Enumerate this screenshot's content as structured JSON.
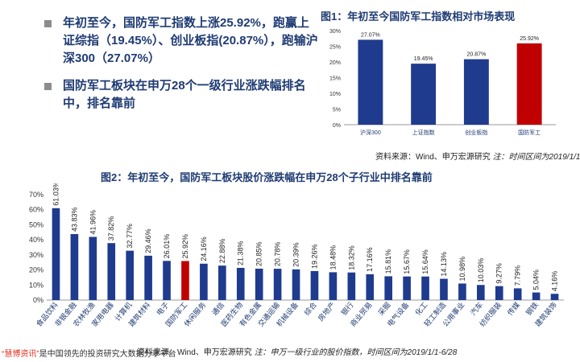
{
  "bullets": [
    "年初至今，国防军工指数上涨25.92%，跑赢上证综指（19.45%）、创业板指(20.87%），跑输沪深300（27.07%）",
    "国防军工板块在申万28个一级行业涨跌幅排名中，排名靠前"
  ],
  "colors": {
    "primary": "#1f3b8e",
    "highlight": "#c00000",
    "title": "#1f3b73"
  },
  "chart_data": [
    {
      "type": "bar",
      "title": "图1：年初至今国防军工指数相对市场表现",
      "categories": [
        "沪深300",
        "上证指数",
        "创业板指",
        "国防军工"
      ],
      "values": [
        27.07,
        19.45,
        20.87,
        25.92
      ],
      "value_labels": [
        "27.07%",
        "19.45%",
        "20.87%",
        "25.92%"
      ],
      "highlight_index": 3,
      "ylim": [
        0,
        30
      ],
      "yticks": [
        "0%",
        "5%",
        "10%",
        "15%",
        "20%",
        "25%",
        "30%"
      ],
      "source_text": "资料来源：Wind、申万宏源研究 ",
      "note": "注：时间区间为2019/1/1-6/28"
    },
    {
      "type": "bar",
      "title": "图2：年初至今，国防军工板块股价涨跌幅在申万28个子行业中排名靠前",
      "categories": [
        "食品饮料",
        "非银金融",
        "农林牧渔",
        "家用电器",
        "计算机",
        "建筑材料",
        "电子",
        "国防军工",
        "休闲服务",
        "通信",
        "医药生物",
        "有色金属",
        "交通运输",
        "机械设备",
        "综合",
        "房地产",
        "银行",
        "商业贸易",
        "采掘",
        "电气设备",
        "化工",
        "轻工制造",
        "公用事业",
        "汽车",
        "纺织服装",
        "传媒",
        "钢铁",
        "建筑装饰"
      ],
      "values": [
        61.03,
        43.83,
        41.96,
        37.82,
        32.77,
        29.46,
        26.01,
        25.92,
        24.16,
        22.88,
        21.38,
        20.85,
        20.78,
        20.39,
        19.26,
        18.48,
        18.32,
        17.16,
        15.81,
        15.67,
        15.64,
        14.13,
        10.98,
        10.03,
        9.27,
        7.79,
        5.04,
        4.16
      ],
      "value_labels": [
        "61.03%",
        "43.83%",
        "41.96%",
        "37.82%",
        "32.77%",
        "29.46%",
        "26.01%",
        "25.92%",
        "24.16%",
        "22.88%",
        "21.38%",
        "20.85%",
        "20.78%",
        "20.39%",
        "19.26%",
        "18.48%",
        "18.32%",
        "17.16%",
        "15.81%",
        "15.67%",
        "15.64%",
        "14.13%",
        "10.98%",
        "10.03%",
        "9.27%",
        "7.79%",
        "5.04%",
        "4.16%"
      ],
      "highlight_index": 7,
      "ylim": [
        0,
        70
      ],
      "yticks": [
        "0%",
        "10%",
        "20%",
        "30%",
        "40%",
        "50%",
        "60%",
        "70%"
      ],
      "source_text": "资料来源：Wind、申万宏源研究 ",
      "note": "注：申万一级行业的股价指数，时间区间为2019/1/1-6/28"
    }
  ],
  "footnote": {
    "highlight": "“慧博资讯”",
    "text": "是中国领先的投资研究大数据分享平台"
  }
}
